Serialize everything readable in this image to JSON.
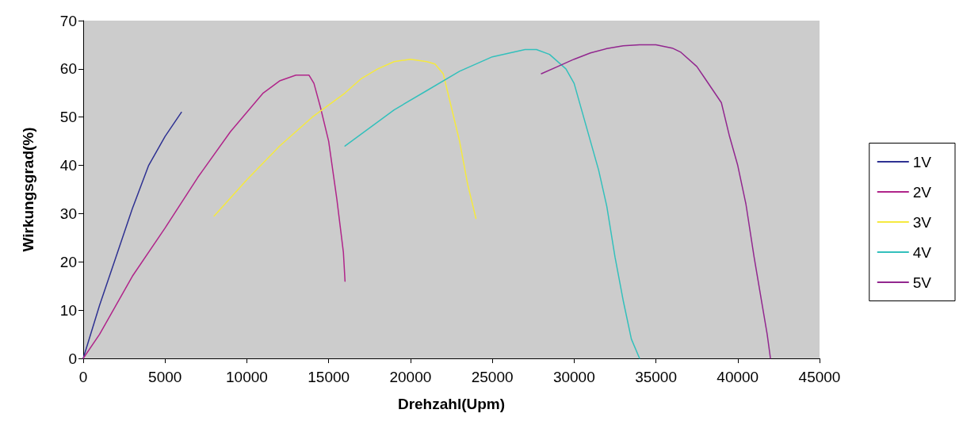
{
  "chart_data": {
    "type": "line",
    "xlabel": "Drehzahl(Upm)",
    "ylabel": "Wirkungsgrad(%)",
    "xlim": [
      0,
      45000
    ],
    "xticks": [
      0,
      5000,
      10000,
      15000,
      20000,
      25000,
      30000,
      35000,
      40000,
      45000
    ],
    "ylim": [
      0,
      70
    ],
    "yticks": [
      0,
      10,
      20,
      30,
      40,
      50,
      60,
      70
    ],
    "grid": false,
    "legend": "right",
    "marker": "none",
    "line_style": "solid",
    "series": [
      {
        "name": "1V",
        "color": "#2e3192",
        "x": [
          0,
          1000,
          2000,
          3000,
          4000,
          5000,
          6000
        ],
        "values": [
          0,
          11,
          21,
          31,
          40,
          46,
          51
        ]
      },
      {
        "name": "2V",
        "color": "#b0258a",
        "x": [
          0,
          1000,
          2000,
          3000,
          5000,
          7000,
          9000,
          11000,
          12000,
          13000,
          13800,
          14100,
          14500,
          15000,
          15500,
          15900,
          16000
        ],
        "values": [
          0,
          5,
          11,
          17,
          27,
          37.5,
          47,
          55,
          57.5,
          58.7,
          58.7,
          57,
          52,
          45,
          33,
          22,
          16
        ]
      },
      {
        "name": "3V",
        "color": "#f5e93f",
        "x": [
          8000,
          10000,
          12000,
          14000,
          16000,
          17000,
          18000,
          19000,
          20000,
          21000,
          21500,
          22000,
          22500,
          23000,
          23500,
          24000
        ],
        "values": [
          29.5,
          37,
          44,
          50,
          55,
          58,
          60,
          61.5,
          62,
          61.5,
          61,
          59,
          52,
          45,
          36,
          29
        ]
      },
      {
        "name": "4V",
        "color": "#33c0bc",
        "x": [
          16000,
          19000,
          21000,
          23000,
          25000,
          27000,
          27700,
          28500,
          29500,
          30000,
          30500,
          31000,
          31500,
          32000,
          32500,
          33000,
          33500,
          34000
        ],
        "values": [
          44,
          51.5,
          55.5,
          59.5,
          62.5,
          64,
          64,
          63,
          60,
          57,
          51,
          45,
          39,
          31.5,
          21,
          12,
          4,
          0
        ]
      },
      {
        "name": "5V",
        "color": "#92278f",
        "x": [
          28000,
          29000,
          30000,
          31000,
          32000,
          33000,
          34000,
          35000,
          36000,
          36500,
          37500,
          38000,
          39000,
          39500,
          40000,
          40500,
          41000,
          41500,
          41800,
          42000
        ],
        "values": [
          59,
          60.5,
          62,
          63.3,
          64.2,
          64.8,
          65,
          65,
          64.3,
          63.5,
          60.5,
          58,
          53,
          46,
          40,
          32,
          21,
          11,
          5,
          0
        ]
      }
    ]
  }
}
